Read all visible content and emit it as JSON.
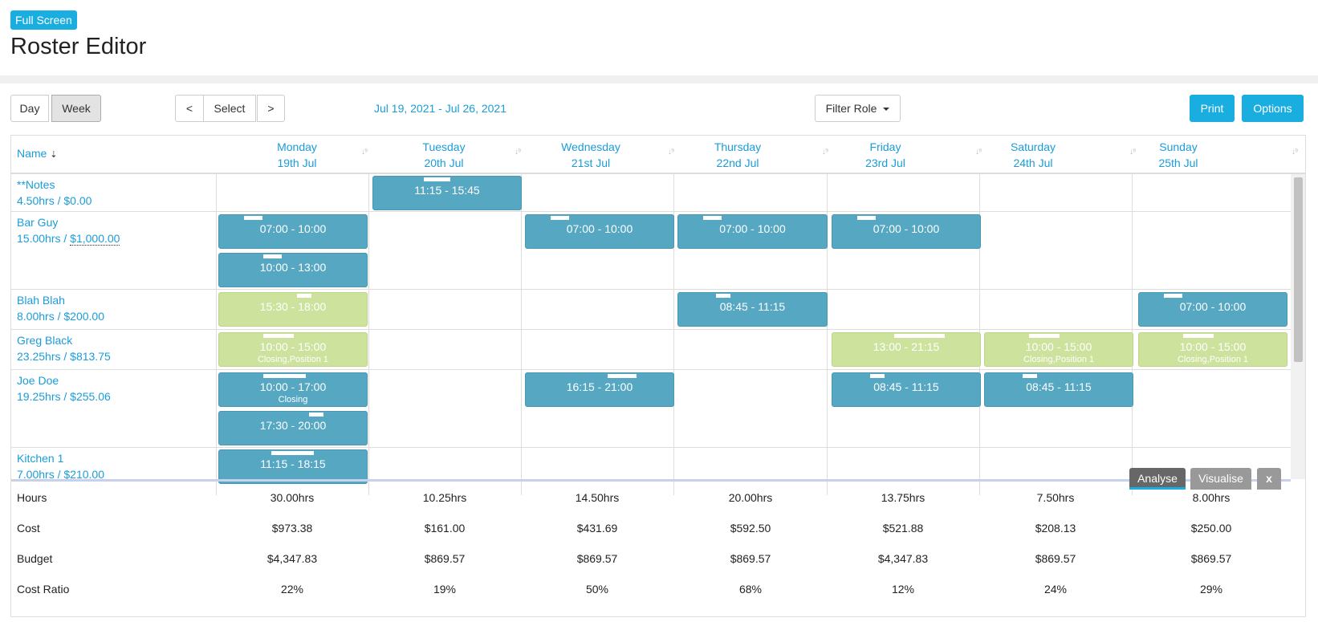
{
  "header": {
    "fullscreen_label": "Full Screen",
    "title": "Roster Editor"
  },
  "toolbar": {
    "day_label": "Day",
    "week_label": "Week",
    "prev_label": "<",
    "select_label": "Select",
    "next_label": ">",
    "date_range": "Jul 19, 2021 - Jul 26, 2021",
    "filter_label": "Filter Role",
    "print_label": "Print",
    "options_label": "Options"
  },
  "grid": {
    "name_header": "Name",
    "days": [
      {
        "name": "Monday",
        "date": "19th Jul"
      },
      {
        "name": "Tuesday",
        "date": "20th Jul"
      },
      {
        "name": "Wednesday",
        "date": "21st Jul"
      },
      {
        "name": "Thursday",
        "date": "22nd Jul"
      },
      {
        "name": "Friday",
        "date": "23rd Jul"
      },
      {
        "name": "Saturday",
        "date": "24th Jul"
      },
      {
        "name": "Sunday",
        "date": "25th Jul"
      }
    ],
    "employees": [
      {
        "name": "**Notes",
        "hours": "4.50hrs",
        "sep": " / ",
        "cost": "$0.00"
      },
      {
        "name": "Bar Guy",
        "hours": "15.00hrs",
        "sep": " / ",
        "cost": "$1,000.00"
      },
      {
        "name": "Blah Blah",
        "hours": "8.00hrs",
        "sep": " / ",
        "cost": "$200.00"
      },
      {
        "name": "Greg Black",
        "hours": "23.25hrs",
        "sep": " / ",
        "cost": "$813.75"
      },
      {
        "name": "Joe Doe",
        "hours": "19.25hrs",
        "sep": " / ",
        "cost": "$255.06"
      },
      {
        "name": "Kitchen 1",
        "hours": "7.00hrs",
        "sep": " / ",
        "cost": "$210.00"
      }
    ],
    "shifts": [
      {
        "time": "11:15 - 15:45"
      },
      {
        "time": "07:00 - 10:00"
      },
      {
        "time": "10:00 - 13:00"
      },
      {
        "time": "07:00 - 10:00"
      },
      {
        "time": "07:00 - 10:00"
      },
      {
        "time": "07:00 - 10:00"
      },
      {
        "time": "15:30 - 18:00"
      },
      {
        "time": "08:45 - 11:15"
      },
      {
        "time": "07:00 - 10:00"
      },
      {
        "time": "10:00 - 15:00",
        "note": "Closing,Position 1"
      },
      {
        "time": "13:00 - 21:15"
      },
      {
        "time": "10:00 - 15:00",
        "note": "Closing,Position 1"
      },
      {
        "time": "10:00 - 15:00",
        "note": "Closing,Position 1"
      },
      {
        "time": "10:00 - 17:00",
        "note": "Closing"
      },
      {
        "time": "17:30 - 20:00"
      },
      {
        "time": "16:15 - 21:00"
      },
      {
        "time": "08:45 - 11:15"
      },
      {
        "time": "08:45 - 11:15"
      },
      {
        "time": "11:15 - 18:15"
      }
    ]
  },
  "panel_tabs": {
    "analyse_label": "Analyse",
    "visualise_label": "Visualise",
    "close_label": "x"
  },
  "stats": {
    "rows": [
      {
        "label": "Hours",
        "values": [
          "30.00hrs",
          "10.25hrs",
          "14.50hrs",
          "20.00hrs",
          "13.75hrs",
          "7.50hrs",
          "8.00hrs"
        ]
      },
      {
        "label": "Cost",
        "values": [
          "$973.38",
          "$161.00",
          "$431.69",
          "$592.50",
          "$521.88",
          "$208.13",
          "$250.00"
        ]
      },
      {
        "label": "Budget",
        "values": [
          "$4,347.83",
          "$869.57",
          "$869.57",
          "$869.57",
          "$4,347.83",
          "$869.57",
          "$869.57"
        ]
      },
      {
        "label": "Cost Ratio",
        "values": [
          "22%",
          "19%",
          "50%",
          "68%",
          "12%",
          "24%",
          "29%"
        ]
      }
    ]
  },
  "colors": {
    "accent": "#1aaee0",
    "link": "#1b9cd8",
    "shift_blue": "#56a7c2",
    "shift_green": "#cde29c"
  }
}
